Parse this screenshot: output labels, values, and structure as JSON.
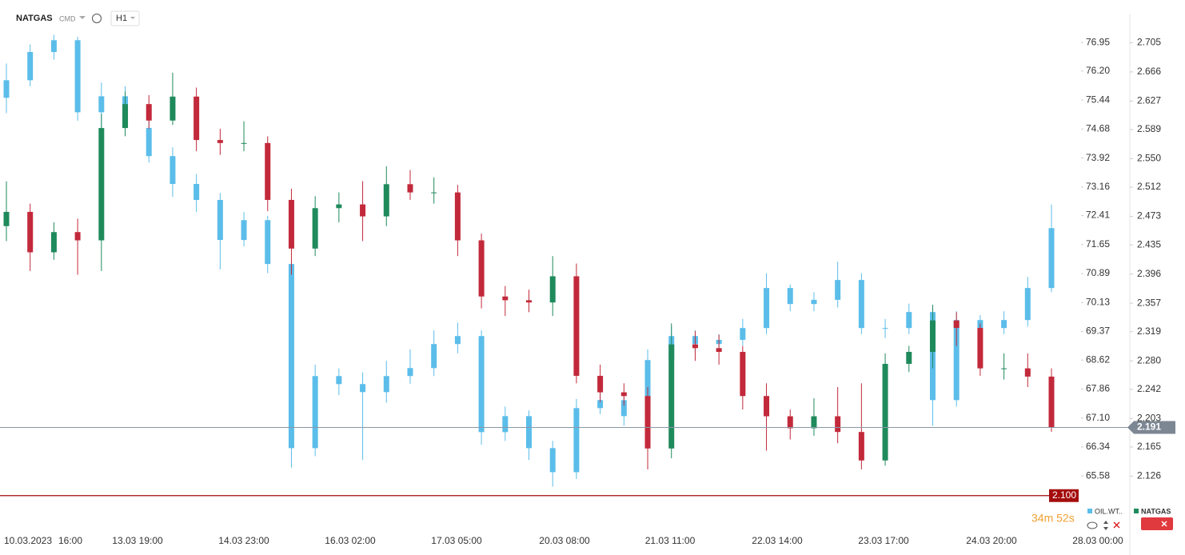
{
  "chart_data": {
    "type": "candlestick",
    "header": {
      "symbol": "NATGAS",
      "market": "CMD",
      "interval": "H1"
    },
    "x_labels": [
      "10.03.2023",
      "16:00",
      "13.03 19:00",
      "14.03 23:00",
      "16.03 02:00",
      "17.03 05:00",
      "20.03 08:00",
      "21.03 11:00",
      "22.03 14:00",
      "23.03 17:00",
      "24.03 20:00",
      "28.03 00:00"
    ],
    "ylim": [
      64.22,
      77.75
    ],
    "yticks": [
      76.95,
      {
        "value": 76.2,
        "label": "76.20"
      },
      75.44,
      74.68,
      73.92,
      73.16,
      72.41,
      71.65,
      70.89,
      70.13,
      69.37,
      68.62,
      67.86,
      {
        "value": 67.1,
        "label": "67.10"
      },
      66.34,
      65.58
    ],
    "y2lim": [
      2.057,
      2.746
    ],
    "y2ticks": [
      2.705,
      2.666,
      2.627,
      2.589,
      {
        "value": 2.55,
        "label": "2.550"
      },
      2.512,
      2.473,
      2.435,
      2.396,
      2.357,
      2.319,
      {
        "value": 2.28,
        "label": "2.280"
      },
      2.242,
      2.203,
      2.165,
      2.126
    ],
    "last_price": 2.191,
    "alert_level": {
      "value": 2.1,
      "label": "2.100"
    },
    "timer": "34m 52s",
    "series": [
      {
        "name": "OIL.WT..",
        "axis": "y",
        "color": "#5bbde9",
        "open": [
          75.5,
          75.96,
          76.7,
          77.01,
          75.12,
          75.54,
          74.71,
          73.97,
          73.24,
          72.82,
          71.77,
          72.29,
          71.14,
          66.31,
          68.2,
          67.99,
          67.78,
          68.2,
          68.41,
          69.04,
          69.25,
          66.73,
          67.15,
          66.31,
          65.68,
          67.36,
          67.57,
          67.15,
          68.62,
          69.25,
          69.04,
          69.15,
          69.46,
          70.51,
          70.09,
          70.2,
          70.72,
          69.46,
          69.46,
          69.88,
          67.57,
          69.67,
          69.46,
          69.67,
          70.51
        ],
        "high": [
          76.4,
          76.9,
          77.15,
          77.1,
          75.9,
          75.8,
          75.0,
          74.2,
          73.5,
          73.0,
          72.5,
          72.4,
          71.2,
          68.5,
          68.4,
          68.3,
          68.6,
          68.9,
          69.4,
          69.6,
          69.4,
          67.4,
          67.3,
          66.5,
          67.6,
          67.8,
          67.7,
          68.9,
          69.5,
          69.4,
          69.3,
          69.7,
          70.9,
          70.6,
          70.4,
          71.2,
          70.9,
          69.7,
          70.1,
          70.0,
          69.9,
          69.8,
          69.9,
          70.8,
          72.7
        ],
        "low": [
          75.1,
          75.8,
          76.5,
          74.9,
          72.8,
          74.5,
          73.8,
          72.9,
          72.5,
          71.0,
          71.6,
          70.9,
          65.8,
          66.1,
          67.7,
          66.0,
          67.5,
          68.0,
          68.2,
          68.8,
          66.4,
          66.5,
          66.0,
          65.3,
          65.5,
          67.2,
          66.9,
          67.0,
          68.4,
          68.8,
          68.9,
          69.0,
          69.3,
          69.9,
          69.9,
          70.0,
          69.3,
          69.2,
          69.3,
          66.9,
          67.4,
          69.2,
          69.3,
          69.5,
          70.4
        ],
        "close": [
          75.96,
          76.7,
          77.01,
          75.12,
          75.54,
          74.71,
          73.97,
          73.24,
          72.82,
          71.77,
          72.29,
          71.14,
          66.31,
          68.2,
          67.99,
          67.78,
          68.2,
          68.41,
          69.04,
          69.25,
          66.73,
          67.15,
          66.31,
          65.68,
          67.36,
          67.57,
          67.15,
          68.62,
          69.25,
          69.04,
          69.15,
          69.46,
          70.51,
          70.09,
          70.2,
          70.72,
          69.46,
          69.46,
          69.88,
          67.57,
          69.67,
          69.46,
          69.67,
          70.51,
          72.08
        ]
      },
      {
        "name": "NATGAS",
        "axis": "y2",
        "up_color": "#1f8a5c",
        "down_color": "#c2293a",
        "open": [
          2.46,
          2.479,
          2.425,
          2.452,
          2.441,
          2.591,
          2.623,
          2.601,
          2.633,
          2.575,
          2.571,
          2.571,
          2.495,
          2.43,
          2.484,
          2.489,
          2.473,
          2.516,
          2.505,
          2.505,
          2.441,
          2.366,
          2.361,
          2.358,
          2.393,
          2.26,
          2.238,
          2.233,
          2.163,
          2.302,
          2.297,
          2.292,
          2.233,
          2.206,
          2.19,
          2.206,
          2.185,
          2.147,
          2.276,
          2.292,
          2.334,
          2.324,
          2.27,
          2.27,
          2.259
        ],
        "high": [
          2.52,
          2.49,
          2.465,
          2.47,
          2.61,
          2.64,
          2.635,
          2.665,
          2.645,
          2.59,
          2.6,
          2.58,
          2.51,
          2.5,
          2.505,
          2.52,
          2.54,
          2.535,
          2.525,
          2.515,
          2.45,
          2.38,
          2.375,
          2.42,
          2.41,
          2.275,
          2.25,
          2.245,
          2.33,
          2.32,
          2.315,
          2.3,
          2.25,
          2.215,
          2.23,
          2.245,
          2.25,
          2.29,
          2.3,
          2.355,
          2.345,
          2.33,
          2.29,
          2.29,
          2.27
        ],
        "low": [
          2.44,
          2.4,
          2.415,
          2.395,
          2.4,
          2.58,
          2.59,
          2.595,
          2.56,
          2.555,
          2.56,
          2.48,
          2.395,
          2.42,
          2.465,
          2.44,
          2.46,
          2.495,
          2.49,
          2.42,
          2.35,
          2.34,
          2.345,
          2.34,
          2.25,
          2.225,
          2.22,
          2.135,
          2.15,
          2.28,
          2.275,
          2.215,
          2.16,
          2.175,
          2.18,
          2.17,
          2.135,
          2.14,
          2.265,
          2.27,
          2.3,
          2.26,
          2.255,
          2.245,
          2.185
        ],
        "close": [
          2.479,
          2.425,
          2.452,
          2.441,
          2.591,
          2.623,
          2.601,
          2.633,
          2.575,
          2.571,
          2.571,
          2.495,
          2.43,
          2.484,
          2.489,
          2.473,
          2.516,
          2.505,
          2.505,
          2.441,
          2.366,
          2.361,
          2.358,
          2.393,
          2.26,
          2.238,
          2.233,
          2.163,
          2.302,
          2.297,
          2.292,
          2.233,
          2.206,
          2.19,
          2.206,
          2.185,
          2.147,
          2.276,
          2.292,
          2.334,
          2.324,
          2.27,
          2.27,
          2.259,
          2.191
        ]
      }
    ]
  }
}
